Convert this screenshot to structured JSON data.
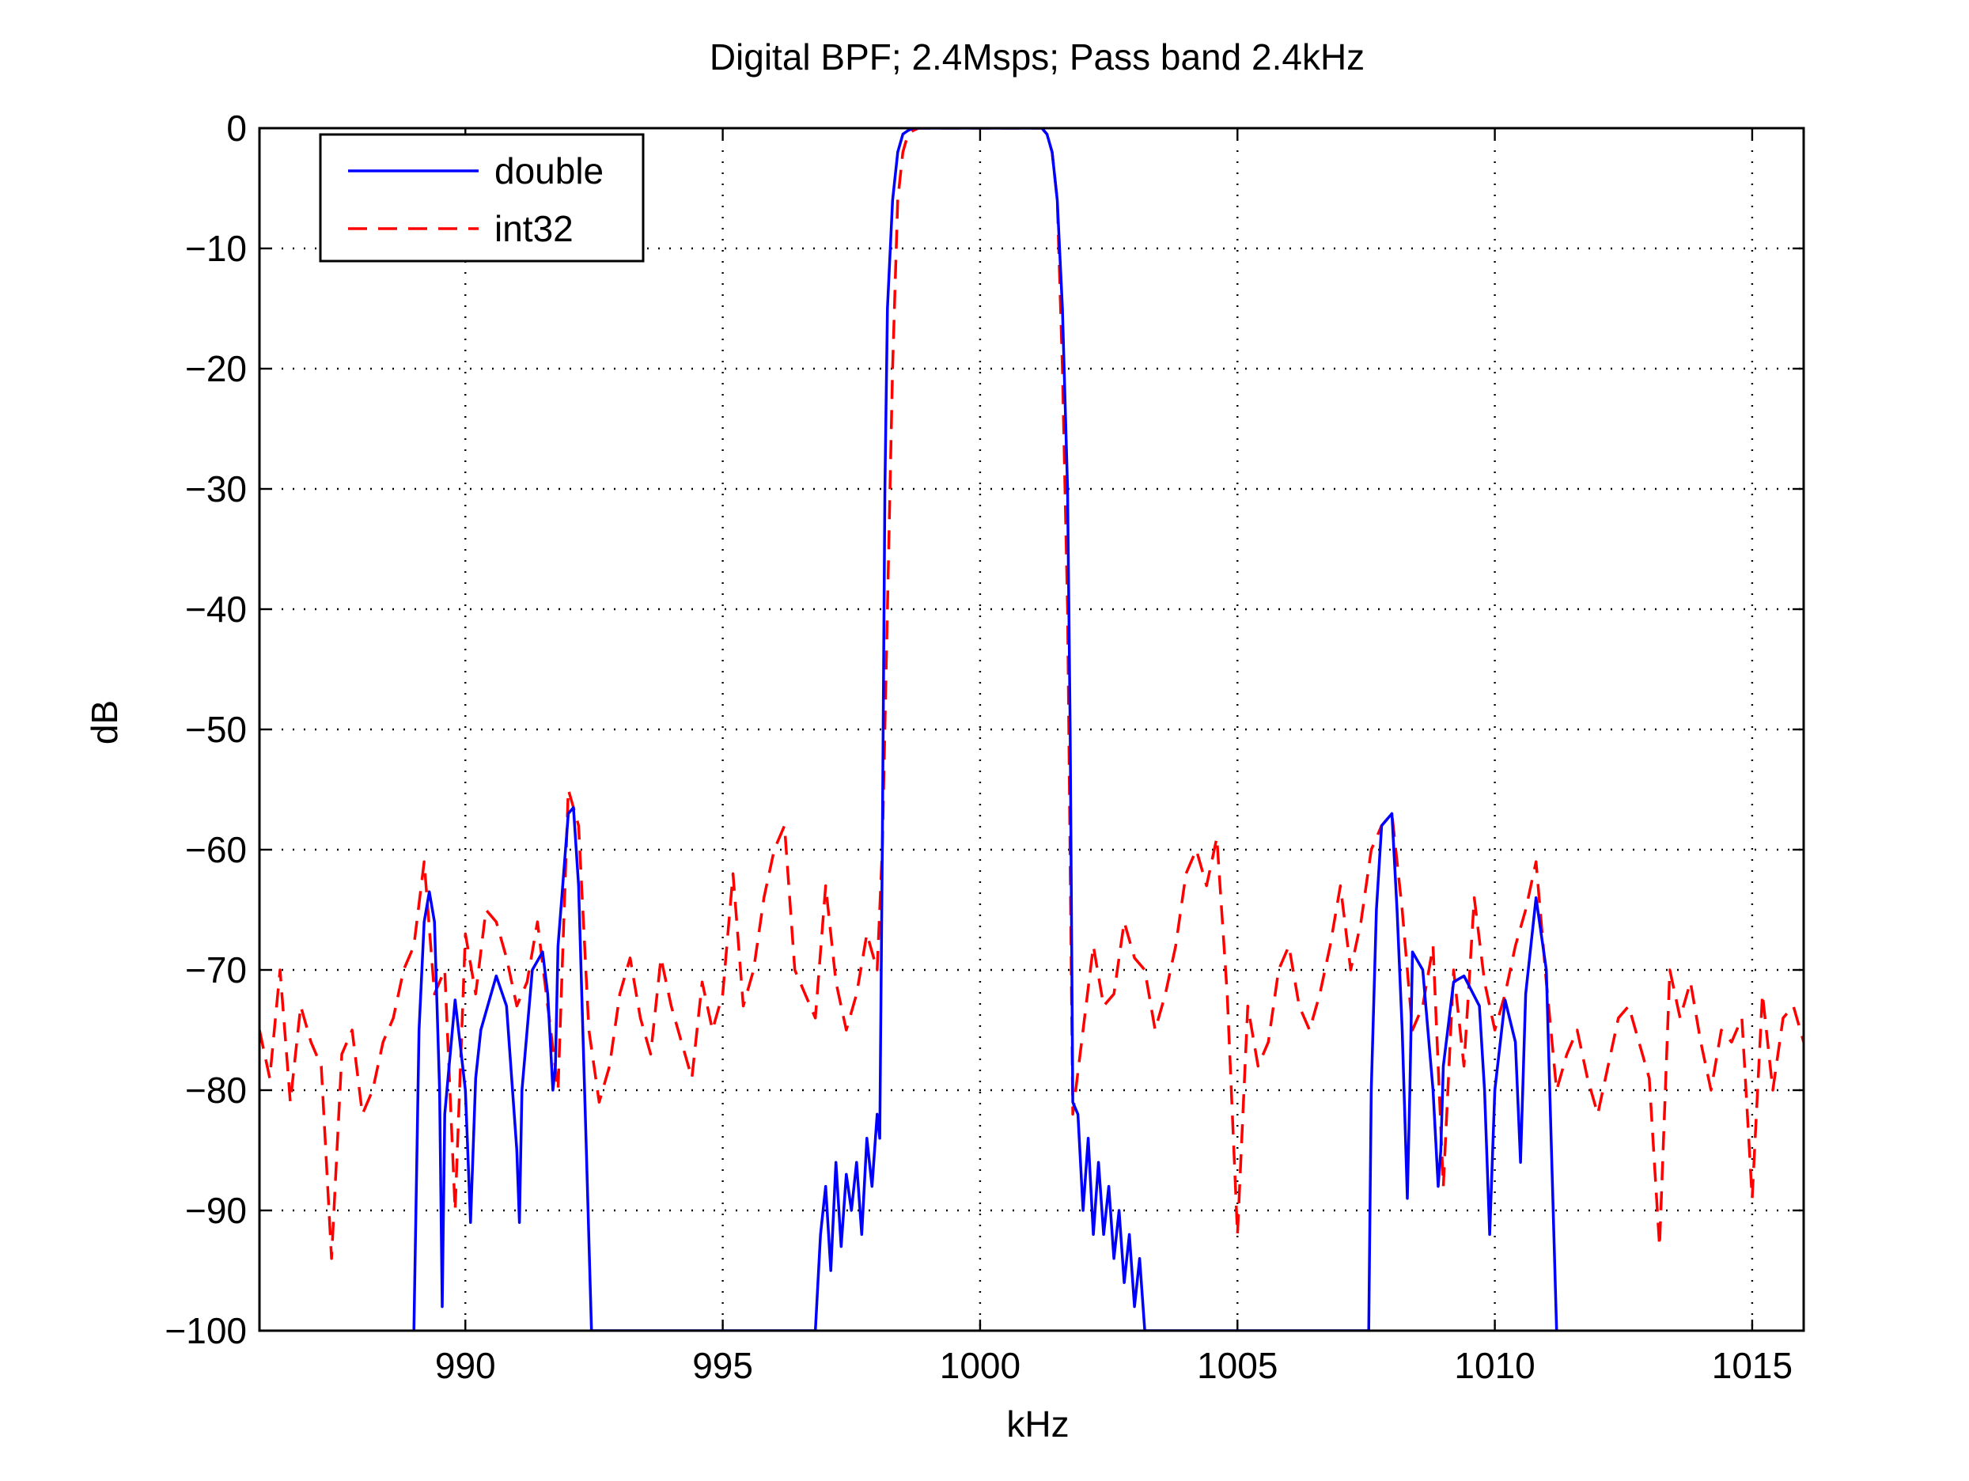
{
  "chart_data": {
    "type": "line",
    "title": "Digital BPF; 2.4Msps; Pass band 2.4kHz",
    "xlabel": "kHz",
    "ylabel": "dB",
    "xlim": [
      986,
      1016
    ],
    "ylim": [
      -100,
      0
    ],
    "xticks": [
      990,
      995,
      1000,
      1005,
      1010,
      1015
    ],
    "yticks": [
      0,
      -10,
      -20,
      -30,
      -40,
      -50,
      -60,
      -70,
      -80,
      -90,
      -100
    ],
    "xtick_labels": [
      "990",
      "995",
      "1000",
      "1005",
      "1010",
      "1015"
    ],
    "ytick_labels": [
      "0",
      "−10",
      "−20",
      "−30",
      "−40",
      "−50",
      "−60",
      "−70",
      "−80",
      "−90",
      "−100"
    ],
    "grid": true,
    "legend_position": "top-left",
    "series": [
      {
        "name": "double",
        "color": "#0000ff",
        "style": "solid",
        "x": [
          989.0,
          989.1,
          989.2,
          989.3,
          989.4,
          989.5,
          989.55,
          989.6,
          989.8,
          990.0,
          990.1,
          990.2,
          990.3,
          990.6,
          990.8,
          991.0,
          991.05,
          991.1,
          991.3,
          991.5,
          991.6,
          991.7,
          991.75,
          991.8,
          992.0,
          992.1,
          992.2,
          992.35,
          992.45,
          996.8,
          996.9,
          997.0,
          997.1,
          997.2,
          997.3,
          997.4,
          997.5,
          997.6,
          997.7,
          997.8,
          997.9,
          998.0,
          998.05,
          998.1,
          998.15,
          998.2,
          998.3,
          998.4,
          998.5,
          998.6,
          998.7,
          998.8,
          999.0,
          1000.0,
          1001.0,
          1001.2,
          1001.3,
          1001.4,
          1001.5,
          1001.6,
          1001.7,
          1001.75,
          1001.8,
          1001.9,
          1002.0,
          1002.1,
          1002.2,
          1002.3,
          1002.4,
          1002.5,
          1002.6,
          1002.7,
          1002.8,
          1002.9,
          1003.0,
          1003.1,
          1003.2,
          1003.3,
          1007.55,
          1007.6,
          1007.7,
          1007.8,
          1008.0,
          1008.1,
          1008.2,
          1008.3,
          1008.35,
          1008.4,
          1008.6,
          1008.8,
          1008.9,
          1008.95,
          1009.0,
          1009.2,
          1009.4,
          1009.7,
          1009.8,
          1009.9,
          1010.0,
          1010.2,
          1010.4,
          1010.5,
          1010.6,
          1010.8,
          1011.0,
          1011.1,
          1011.2
        ],
        "y": [
          -100,
          -75,
          -66,
          -63.5,
          -66,
          -80,
          -98,
          -82,
          -72.5,
          -80,
          -91,
          -79,
          -75,
          -70.5,
          -73,
          -85,
          -91,
          -80,
          -70,
          -68.5,
          -72,
          -80,
          -78,
          -68,
          -57,
          -56.5,
          -63,
          -85,
          -100,
          -100,
          -92,
          -88,
          -95,
          -86,
          -93,
          -87,
          -90,
          -86,
          -92,
          -84,
          -88,
          -82,
          -84,
          -60,
          -30,
          -15,
          -6,
          -2,
          -0.5,
          -0.2,
          0,
          0,
          0,
          0,
          0,
          0,
          -0.5,
          -2,
          -6,
          -15,
          -30,
          -50,
          -81,
          -82,
          -90,
          -84,
          -92,
          -86,
          -92,
          -88,
          -94,
          -90,
          -96,
          -92,
          -98,
          -94,
          -100,
          -100,
          -100,
          -80,
          -65,
          -58,
          -57,
          -65,
          -75,
          -89,
          -80,
          -68.5,
          -70,
          -80,
          -88,
          -85,
          -78,
          -71,
          -70.5,
          -73,
          -80,
          -92,
          -80,
          -72.5,
          -76,
          -86,
          -72,
          -64,
          -70,
          -85,
          -100
        ]
      },
      {
        "name": "int32",
        "color": "#ff0000",
        "style": "dashed",
        "x": [
          986.0,
          986.2,
          986.4,
          986.6,
          986.8,
          987.0,
          987.2,
          987.4,
          987.6,
          987.8,
          988.0,
          988.2,
          988.4,
          988.6,
          988.8,
          989.0,
          989.2,
          989.4,
          989.6,
          989.8,
          990.0,
          990.2,
          990.4,
          990.6,
          990.8,
          991.0,
          991.2,
          991.4,
          991.6,
          991.8,
          992.0,
          992.2,
          992.4,
          992.6,
          992.8,
          993.0,
          993.2,
          993.4,
          993.6,
          993.8,
          994.0,
          994.2,
          994.4,
          994.6,
          994.8,
          995.0,
          995.2,
          995.4,
          995.6,
          995.8,
          996.0,
          996.2,
          996.4,
          996.6,
          996.8,
          997.0,
          997.2,
          997.4,
          997.6,
          997.8,
          998.0,
          998.1,
          998.2,
          998.3,
          998.4,
          998.5,
          998.6,
          998.7,
          998.8,
          999.0,
          1000.0,
          1001.0,
          1001.2,
          1001.3,
          1001.4,
          1001.5,
          1001.6,
          1001.7,
          1001.8,
          1002.0,
          1002.2,
          1002.4,
          1002.6,
          1002.8,
          1003.0,
          1003.2,
          1003.4,
          1003.6,
          1003.8,
          1004.0,
          1004.2,
          1004.4,
          1004.6,
          1004.8,
          1005.0,
          1005.2,
          1005.4,
          1005.6,
          1005.8,
          1006.0,
          1006.2,
          1006.4,
          1006.6,
          1006.8,
          1007.0,
          1007.2,
          1007.4,
          1007.6,
          1007.8,
          1008.0,
          1008.2,
          1008.4,
          1008.6,
          1008.8,
          1009.0,
          1009.2,
          1009.4,
          1009.6,
          1009.8,
          1010.0,
          1010.2,
          1010.4,
          1010.6,
          1010.8,
          1011.0,
          1011.2,
          1011.4,
          1011.6,
          1011.8,
          1012.0,
          1012.2,
          1012.4,
          1012.6,
          1012.8,
          1013.0,
          1013.2,
          1013.4,
          1013.6,
          1013.8,
          1014.0,
          1014.2,
          1014.4,
          1014.6,
          1014.8,
          1015.0,
          1015.2,
          1015.4,
          1015.6,
          1015.8,
          1016.0
        ],
        "y": [
          -75,
          -79,
          -70,
          -81,
          -73,
          -76,
          -78,
          -94,
          -77,
          -75,
          -82,
          -80,
          -76,
          -74,
          -70,
          -68,
          -61,
          -72,
          -70,
          -90,
          -67,
          -72,
          -65,
          -66,
          -69,
          -73,
          -71,
          -66,
          -73,
          -80,
          -55,
          -58,
          -75,
          -81,
          -78,
          -72,
          -69,
          -74,
          -77,
          -69,
          -73,
          -76,
          -79,
          -71,
          -75,
          -72,
          -62,
          -73,
          -70,
          -64,
          -60,
          -58,
          -70,
          -72,
          -74,
          -63,
          -71,
          -75,
          -72,
          -67,
          -70,
          -60,
          -40,
          -20,
          -6,
          -2,
          -0.5,
          -0.2,
          0,
          0,
          0,
          0,
          0,
          -0.5,
          -2,
          -6,
          -20,
          -40,
          -82,
          -75,
          -68,
          -73,
          -72,
          -66,
          -69,
          -70,
          -75,
          -72,
          -68,
          -62,
          -60,
          -63,
          -59,
          -72,
          -92,
          -73,
          -78,
          -76,
          -70,
          -68,
          -73,
          -75,
          -72,
          -68,
          -63,
          -70,
          -66,
          -60,
          -58,
          -57,
          -65,
          -75,
          -73,
          -68,
          -88,
          -70,
          -78,
          -64,
          -71,
          -75,
          -72,
          -68,
          -65,
          -61,
          -71,
          -80,
          -77,
          -75,
          -79,
          -82,
          -78,
          -74,
          -73,
          -76,
          -79,
          -93,
          -70,
          -74,
          -71,
          -76,
          -80,
          -75,
          -76,
          -74,
          -89,
          -72,
          -80,
          -74,
          -73,
          -76
        ]
      }
    ]
  }
}
